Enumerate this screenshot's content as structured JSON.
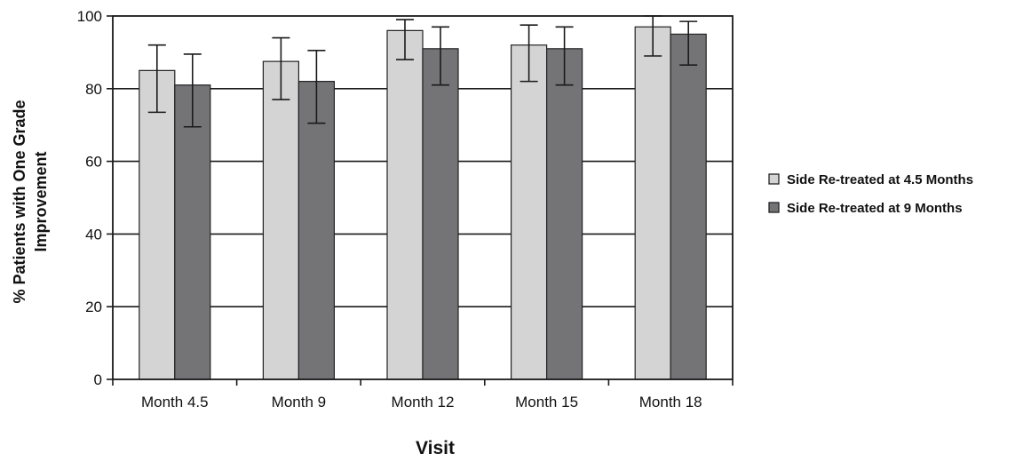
{
  "chart_data": {
    "type": "bar",
    "title": "",
    "xlabel": "Visit",
    "ylabel_lines": [
      "% Patients with One Grade",
      "Improvement"
    ],
    "ylim": [
      0,
      100
    ],
    "yticks": [
      0,
      20,
      40,
      60,
      80,
      100
    ],
    "grid": true,
    "legend_position": "right",
    "categories": [
      "Month 4.5",
      "Month 9",
      "Month 12",
      "Month 15",
      "Month 18"
    ],
    "series": [
      {
        "name": "Side Re-treated at 4.5 Months",
        "color": "#d4d4d4",
        "values": [
          85,
          87.5,
          96,
          92,
          97
        ],
        "error_low": [
          73.5,
          77,
          88,
          82,
          89
        ],
        "error_high": [
          92,
          94,
          99,
          97.5,
          100
        ]
      },
      {
        "name": "Side Re-treated at 9 Months",
        "color": "#747477",
        "values": [
          81,
          82,
          91,
          91,
          95
        ],
        "error_low": [
          69.5,
          70.5,
          81,
          81,
          86.5
        ],
        "error_high": [
          89.5,
          90.5,
          97,
          97,
          98.5
        ]
      }
    ]
  }
}
